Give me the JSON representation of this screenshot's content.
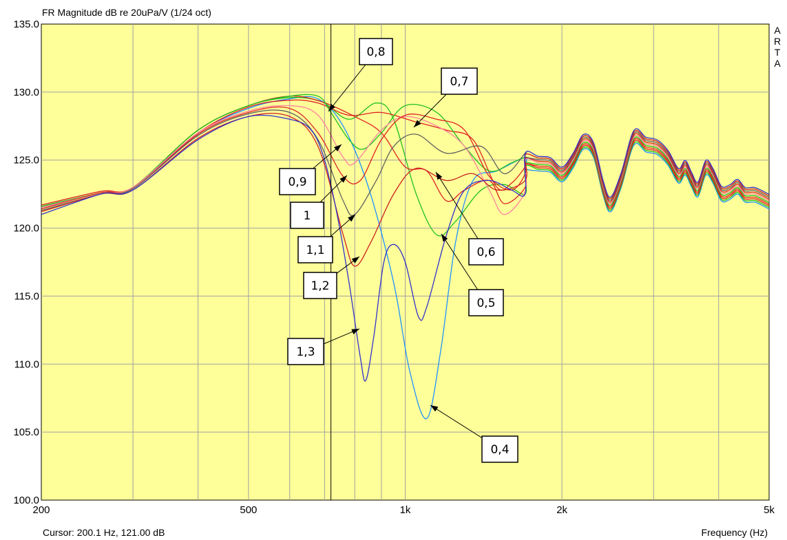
{
  "header": {
    "title": "FR Magnitude dB re 20uPa/V (1/24 oct)",
    "side_brand": [
      "A",
      "R",
      "T",
      "A"
    ]
  },
  "footer": {
    "cursor_readout": "Cursor: 200.1 Hz, 121.00 dB",
    "xaxis_label": "Frequency (Hz)"
  },
  "colors": {
    "plot_bg": "#ffff99",
    "grid": "#a0a0a0",
    "cursor": "#000000"
  },
  "chart_data": {
    "type": "line",
    "title": "FR Magnitude dB re 20uPa/V (1/24 oct)",
    "xlabel": "Frequency (Hz)",
    "ylabel": "",
    "xscale": "log",
    "xlim": [
      200,
      5000
    ],
    "ylim": [
      100,
      135
    ],
    "grid": true,
    "cursor": {
      "frequency_hz": 200.1,
      "level_db": 121.0,
      "line_at_hz": 720
    },
    "x_ticks": [
      {
        "value": 200,
        "label": "200"
      },
      {
        "value": 500,
        "label": "500"
      },
      {
        "value": 1000,
        "label": "1k"
      },
      {
        "value": 2000,
        "label": "2k"
      },
      {
        "value": 5000,
        "label": "5k"
      }
    ],
    "x_minor_ticks": [
      300,
      400,
      600,
      700,
      800,
      900,
      3000,
      4000
    ],
    "y_ticks": [
      {
        "value": 100,
        "label": "100.0"
      },
      {
        "value": 105,
        "label": "105.0"
      },
      {
        "value": 110,
        "label": "110.0"
      },
      {
        "value": 115,
        "label": "115.0"
      },
      {
        "value": 120,
        "label": "120.0"
      },
      {
        "value": 125,
        "label": "125.0"
      },
      {
        "value": 130,
        "label": "130.0"
      },
      {
        "value": 135,
        "label": "135.0"
      }
    ],
    "tail": [
      [
        1700,
        125.0
      ],
      [
        1800,
        124.8
      ],
      [
        1900,
        124.7
      ],
      [
        2000,
        124.0
      ],
      [
        2100,
        125.0
      ],
      [
        2200,
        126.4
      ],
      [
        2300,
        125.8
      ],
      [
        2400,
        123.0
      ],
      [
        2480,
        121.8
      ],
      [
        2600,
        123.6
      ],
      [
        2750,
        126.7
      ],
      [
        2900,
        126.2
      ],
      [
        3050,
        126.0
      ],
      [
        3200,
        125.2
      ],
      [
        3350,
        123.9
      ],
      [
        3450,
        124.5
      ],
      [
        3550,
        123.6
      ],
      [
        3650,
        122.9
      ],
      [
        3780,
        124.5
      ],
      [
        3900,
        123.9
      ],
      [
        4050,
        122.6
      ],
      [
        4200,
        122.7
      ],
      [
        4350,
        123.1
      ],
      [
        4500,
        122.5
      ],
      [
        4700,
        122.5
      ],
      [
        5000,
        122.0
      ]
    ],
    "series": [
      {
        "name": "0,4",
        "color": "#1e90ff",
        "points": [
          [
            200,
            121.5
          ],
          [
            260,
            122.6
          ],
          [
            300,
            123.0
          ],
          [
            400,
            127.0
          ],
          [
            500,
            128.8
          ],
          [
            600,
            129.5
          ],
          [
            680,
            129.5
          ],
          [
            760,
            127.5
          ],
          [
            850,
            123.0
          ],
          [
            950,
            116.0
          ],
          [
            1020,
            109.5
          ],
          [
            1100,
            106.0
          ],
          [
            1170,
            111.0
          ],
          [
            1250,
            119.0
          ],
          [
            1350,
            123.5
          ],
          [
            1500,
            124.2
          ],
          [
            1700,
            125.2
          ]
        ]
      },
      {
        "name": "0,5",
        "color": "#20c020",
        "points": [
          [
            200,
            121.5
          ],
          [
            260,
            122.6
          ],
          [
            300,
            123.0
          ],
          [
            400,
            127.2
          ],
          [
            500,
            129.0
          ],
          [
            600,
            129.6
          ],
          [
            690,
            129.3
          ],
          [
            780,
            128.0
          ],
          [
            880,
            129.2
          ],
          [
            950,
            128.0
          ],
          [
            1050,
            122.5
          ],
          [
            1150,
            119.5
          ],
          [
            1250,
            120.5
          ],
          [
            1400,
            122.8
          ],
          [
            1550,
            123.2
          ],
          [
            1700,
            122.5
          ]
        ]
      },
      {
        "name": "0,6",
        "color": "#dd2222",
        "points": [
          [
            200,
            121.6
          ],
          [
            260,
            122.6
          ],
          [
            300,
            123.0
          ],
          [
            400,
            127.2
          ],
          [
            500,
            129.0
          ],
          [
            600,
            129.7
          ],
          [
            690,
            129.3
          ],
          [
            800,
            128.2
          ],
          [
            900,
            127.0
          ],
          [
            1000,
            124.5
          ],
          [
            1100,
            124.2
          ],
          [
            1200,
            122.0
          ],
          [
            1300,
            122.8
          ],
          [
            1450,
            123.5
          ],
          [
            1550,
            121.8
          ],
          [
            1700,
            123.0
          ]
        ]
      },
      {
        "name": "0,7",
        "color": "#dd2222",
        "points": [
          [
            200,
            121.7
          ],
          [
            260,
            122.7
          ],
          [
            300,
            123.0
          ],
          [
            400,
            127.0
          ],
          [
            500,
            128.9
          ],
          [
            600,
            129.4
          ],
          [
            680,
            129.2
          ],
          [
            780,
            128.3
          ],
          [
            900,
            128.5
          ],
          [
            1050,
            127.8
          ],
          [
            1200,
            127.2
          ],
          [
            1350,
            126.5
          ],
          [
            1500,
            123.0
          ],
          [
            1600,
            123.3
          ],
          [
            1700,
            124.5
          ]
        ]
      },
      {
        "name": "0,8",
        "color": "#20c020",
        "points": [
          [
            200,
            121.6
          ],
          [
            260,
            122.6
          ],
          [
            300,
            123.0
          ],
          [
            400,
            127.2
          ],
          [
            500,
            129.0
          ],
          [
            600,
            129.7
          ],
          [
            680,
            129.7
          ],
          [
            720,
            128.5
          ],
          [
            780,
            126.5
          ],
          [
            830,
            125.8
          ],
          [
            900,
            127.0
          ],
          [
            1000,
            129.0
          ],
          [
            1150,
            128.5
          ],
          [
            1300,
            126.0
          ],
          [
            1450,
            124.2
          ],
          [
            1600,
            124.8
          ],
          [
            1700,
            125.2
          ]
        ]
      },
      {
        "name": "0,9",
        "color": "#ff80a0",
        "points": [
          [
            200,
            121.5
          ],
          [
            260,
            122.6
          ],
          [
            300,
            123.0
          ],
          [
            400,
            127.0
          ],
          [
            500,
            128.6
          ],
          [
            600,
            129.0
          ],
          [
            680,
            128.3
          ],
          [
            760,
            125.2
          ],
          [
            800,
            124.8
          ],
          [
            900,
            127.2
          ],
          [
            1000,
            128.2
          ],
          [
            1150,
            127.5
          ],
          [
            1300,
            126.0
          ],
          [
            1450,
            122.8
          ],
          [
            1550,
            121.0
          ],
          [
            1700,
            122.7
          ]
        ]
      },
      {
        "name": "1",
        "color": "#dd2222",
        "points": [
          [
            200,
            121.4
          ],
          [
            260,
            122.6
          ],
          [
            300,
            122.9
          ],
          [
            400,
            126.9
          ],
          [
            500,
            128.5
          ],
          [
            600,
            128.8
          ],
          [
            680,
            127.0
          ],
          [
            760,
            123.8
          ],
          [
            820,
            123.5
          ],
          [
            900,
            126.5
          ],
          [
            1000,
            128.3
          ],
          [
            1150,
            128.0
          ],
          [
            1300,
            127.2
          ],
          [
            1450,
            123.8
          ],
          [
            1600,
            122.8
          ],
          [
            1700,
            124.0
          ]
        ]
      },
      {
        "name": "1,1",
        "color": "#606060",
        "points": [
          [
            200,
            121.3
          ],
          [
            260,
            122.5
          ],
          [
            300,
            122.9
          ],
          [
            400,
            126.8
          ],
          [
            500,
            128.4
          ],
          [
            600,
            128.5
          ],
          [
            680,
            126.5
          ],
          [
            760,
            122.0
          ],
          [
            800,
            121.0
          ],
          [
            880,
            123.5
          ],
          [
            950,
            126.0
          ],
          [
            1050,
            126.9
          ],
          [
            1200,
            125.5
          ],
          [
            1400,
            126.0
          ],
          [
            1550,
            124.0
          ],
          [
            1700,
            125.5
          ]
        ]
      },
      {
        "name": "1,2",
        "color": "#cc2020",
        "points": [
          [
            200,
            121.2
          ],
          [
            260,
            122.5
          ],
          [
            300,
            122.8
          ],
          [
            400,
            126.6
          ],
          [
            500,
            128.2
          ],
          [
            600,
            128.2
          ],
          [
            680,
            126.0
          ],
          [
            760,
            119.5
          ],
          [
            800,
            117.2
          ],
          [
            860,
            119.0
          ],
          [
            950,
            122.5
          ],
          [
            1050,
            124.4
          ],
          [
            1200,
            123.5
          ],
          [
            1350,
            124.0
          ],
          [
            1500,
            122.8
          ],
          [
            1700,
            123.5
          ]
        ]
      },
      {
        "name": "1,3",
        "color": "#3030cc",
        "points": [
          [
            200,
            121.0
          ],
          [
            260,
            122.5
          ],
          [
            300,
            122.8
          ],
          [
            400,
            126.5
          ],
          [
            500,
            128.2
          ],
          [
            600,
            128.0
          ],
          [
            660,
            127.2
          ],
          [
            700,
            125.0
          ],
          [
            740,
            121.0
          ],
          [
            780,
            116.0
          ],
          [
            820,
            110.5
          ],
          [
            840,
            108.8
          ],
          [
            870,
            112.0
          ],
          [
            910,
            117.5
          ],
          [
            950,
            118.8
          ],
          [
            1000,
            117.5
          ],
          [
            1060,
            113.5
          ],
          [
            1100,
            114.2
          ],
          [
            1200,
            119.5
          ],
          [
            1300,
            122.8
          ],
          [
            1450,
            123.5
          ],
          [
            1600,
            122.8
          ],
          [
            1700,
            122.5
          ]
        ]
      }
    ],
    "annotations": [
      {
        "text": "0,8",
        "box_center": [
          1,
          1
        ],
        "arrow_to": [
          1,
          1
        ]
      },
      {
        "text": "0,7",
        "box_center": [
          1,
          1
        ],
        "arrow_to": [
          1,
          1
        ]
      },
      {
        "text": "0,9",
        "box_center": [
          1,
          1
        ],
        "arrow_to": [
          1,
          1
        ]
      },
      {
        "text": "1",
        "box_center": [
          1,
          1
        ],
        "arrow_to": [
          1,
          1
        ]
      },
      {
        "text": "1,1",
        "box_center": [
          1,
          1
        ],
        "arrow_to": [
          1,
          1
        ]
      },
      {
        "text": "1,2",
        "box_center": [
          1,
          1
        ],
        "arrow_to": [
          1,
          1
        ]
      },
      {
        "text": "1,3",
        "box_center": [
          1,
          1
        ],
        "arrow_to": [
          1,
          1
        ]
      },
      {
        "text": "0,6",
        "box_center": [
          1,
          1
        ],
        "arrow_to": [
          1,
          1
        ]
      },
      {
        "text": "0,5",
        "box_center": [
          1,
          1
        ],
        "arrow_to": [
          1,
          1
        ]
      },
      {
        "text": "0,4",
        "box_center": [
          1,
          1
        ],
        "arrow_to": [
          1,
          1
        ]
      }
    ]
  }
}
